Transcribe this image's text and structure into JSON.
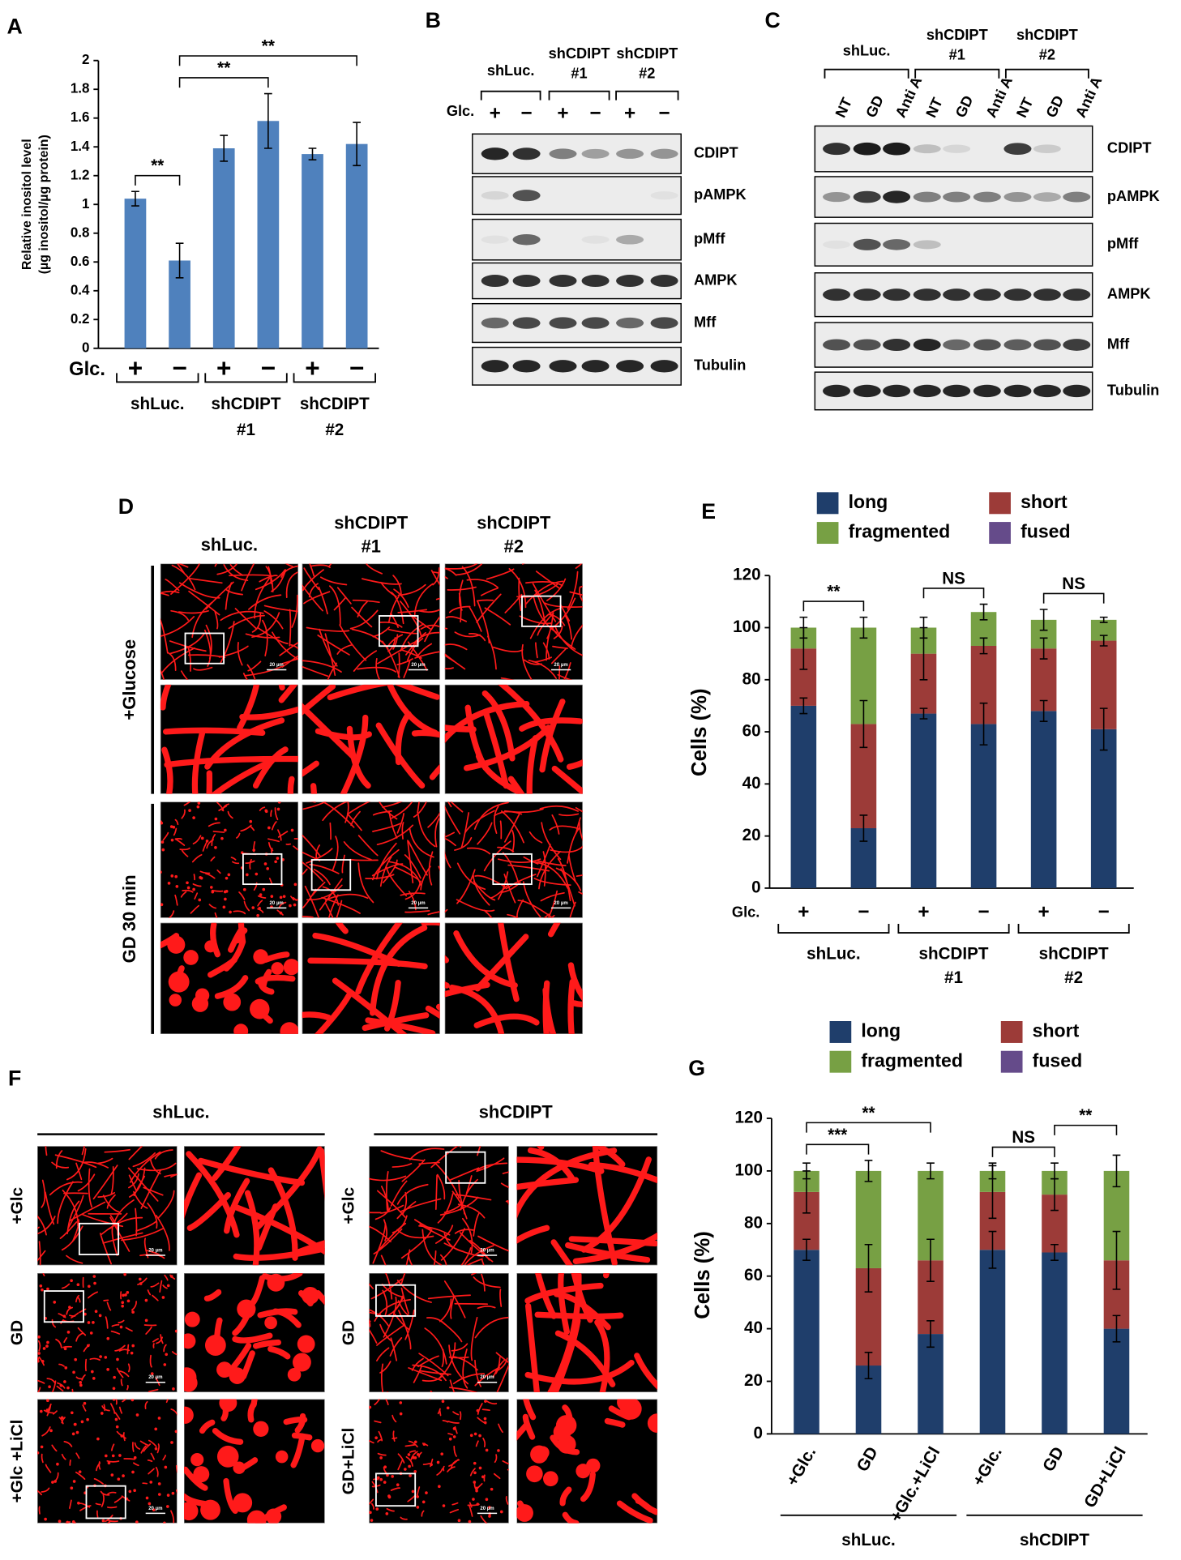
{
  "panel_labels": [
    "A",
    "B",
    "C",
    "D",
    "E",
    "F",
    "G"
  ],
  "chart_data": [
    {
      "type": "bar",
      "ylabel": [
        "Relative inositol level",
        "(µg inositol/µg protein)"
      ],
      "row_label": "Glc.",
      "categories": [
        "+",
        "−",
        "+",
        "−",
        "+",
        "−"
      ],
      "groups": [
        [
          "shLuc."
        ],
        [
          "shCDIPT",
          "#1"
        ],
        [
          "shCDIPT",
          "#2"
        ]
      ],
      "values": [
        1.04,
        0.61,
        1.39,
        1.58,
        1.35,
        1.42
      ],
      "errors": [
        0.05,
        0.12,
        0.09,
        0.19,
        0.04,
        0.15
      ],
      "color": "#4f81bd",
      "ylim": [
        0,
        2
      ],
      "yticks": [
        0,
        0.2,
        0.4,
        0.6,
        0.8,
        1,
        1.2,
        1.4,
        1.6,
        1.8,
        2
      ],
      "annotations": [
        {
          "text": "**",
          "from": 0,
          "to": 1
        },
        {
          "text": "**",
          "from": 1,
          "to": 3
        },
        {
          "text": "**",
          "from": 1,
          "to": 5
        }
      ]
    },
    {
      "type": "stacked_bar",
      "ylabel": "Cells (%)",
      "row_label": "Glc.",
      "categories": [
        "+",
        "−",
        "+",
        "−",
        "+",
        "−"
      ],
      "groups": [
        [
          "shLuc."
        ],
        [
          "shCDIPT",
          "#1"
        ],
        [
          "shCDIPT",
          "#2"
        ]
      ],
      "legend": "top",
      "series": [
        {
          "name": "long",
          "color": "#1f3e6b",
          "values": [
            70,
            23,
            67,
            63,
            68,
            61
          ],
          "errors": [
            3,
            5,
            2,
            8,
            4,
            8
          ]
        },
        {
          "name": "short",
          "color": "#9c3b38",
          "values": [
            22,
            40,
            23,
            30,
            24,
            34
          ],
          "errors": [
            8,
            9,
            10,
            3,
            4,
            2
          ]
        },
        {
          "name": "fragmented",
          "color": "#77a044",
          "values": [
            8,
            37,
            10,
            13,
            11,
            8
          ],
          "errors": [
            4,
            4,
            4,
            3,
            4,
            1
          ]
        },
        {
          "name": "fused",
          "color": "#654b8a",
          "values": [
            0,
            0,
            0,
            0,
            0,
            0
          ]
        }
      ],
      "ylim": [
        0,
        120
      ],
      "yticks": [
        0,
        20,
        40,
        60,
        80,
        100,
        120
      ],
      "annotations": [
        {
          "text": "**",
          "from": 0,
          "to": 1
        },
        {
          "text": "NS",
          "from": 2,
          "to": 3
        },
        {
          "text": "NS",
          "from": 4,
          "to": 5
        }
      ]
    },
    {
      "type": "stacked_bar",
      "ylabel": "Cells (%)",
      "categories": [
        "+Glc.",
        "GD",
        "+Glc.+LiCl",
        "+Glc.",
        "GD",
        "GD+LiCl"
      ],
      "groups": [
        [
          "shLuc."
        ],
        [
          "shCDIPT"
        ]
      ],
      "legend": "top",
      "series": [
        {
          "name": "long",
          "color": "#1f3e6b",
          "values": [
            70,
            26,
            38,
            70,
            69,
            40
          ],
          "errors": [
            4,
            5,
            5,
            7,
            3,
            5
          ]
        },
        {
          "name": "short",
          "color": "#9c3b38",
          "values": [
            22,
            37,
            28,
            22,
            22,
            26
          ],
          "errors": [
            8,
            9,
            8,
            10,
            6,
            11
          ]
        },
        {
          "name": "fragmented",
          "color": "#77a044",
          "values": [
            8,
            37,
            34,
            8,
            9,
            34
          ],
          "errors": [
            3,
            4,
            3,
            3,
            3,
            6
          ]
        },
        {
          "name": "fused",
          "color": "#654b8a",
          "values": [
            0,
            0,
            0,
            0,
            0,
            0
          ]
        }
      ],
      "ylim": [
        0,
        120
      ],
      "yticks": [
        0,
        20,
        40,
        60,
        80,
        100,
        120
      ],
      "annotations": [
        {
          "text": "***",
          "from": 0,
          "to": 1
        },
        {
          "text": "**",
          "from": 0,
          "to": 2
        },
        {
          "text": "NS",
          "from": 3,
          "to": 4
        },
        {
          "text": "**",
          "from": 4,
          "to": 5
        }
      ]
    }
  ],
  "blot_b": {
    "groups": [
      [
        "shLuc."
      ],
      [
        "shCDIPT",
        "#1"
      ],
      [
        "shCDIPT",
        "#2"
      ]
    ],
    "lane_row_label": "Glc.",
    "lanes": [
      "+",
      "−",
      "+",
      "−",
      "+",
      "−"
    ],
    "bands": [
      "CDIPT",
      "pAMPK",
      "pMff",
      "AMPK",
      "Mff",
      "Tubulin"
    ]
  },
  "blot_c": {
    "groups": [
      [
        "shLuc."
      ],
      [
        "shCDIPT",
        "#1"
      ],
      [
        "shCDIPT",
        "#2"
      ]
    ],
    "lanes": [
      "NT",
      "GD",
      "Anti A",
      "NT",
      "GD",
      "Anti A",
      "NT",
      "GD",
      "Anti A"
    ],
    "bands": [
      "CDIPT",
      "pAMPK",
      "pMff",
      "AMPK",
      "Mff",
      "Tubulin"
    ]
  },
  "panel_d": {
    "columns": [
      [
        "shLuc."
      ],
      [
        "shCDIPT",
        "#1"
      ],
      [
        "shCDIPT",
        "#2"
      ]
    ],
    "rows": [
      "+Glucose",
      "GD 30 min"
    ],
    "scale_bar": "20 µm"
  },
  "panel_f": {
    "groups": [
      {
        "label": "shLuc.",
        "rows": [
          "+Glc",
          "GD",
          "+Glc +LiCl"
        ]
      },
      {
        "label": "shCDIPT",
        "rows": [
          "+Glc",
          "GD",
          "GD+LiCl"
        ]
      }
    ],
    "scale_bar": "20 µm"
  }
}
